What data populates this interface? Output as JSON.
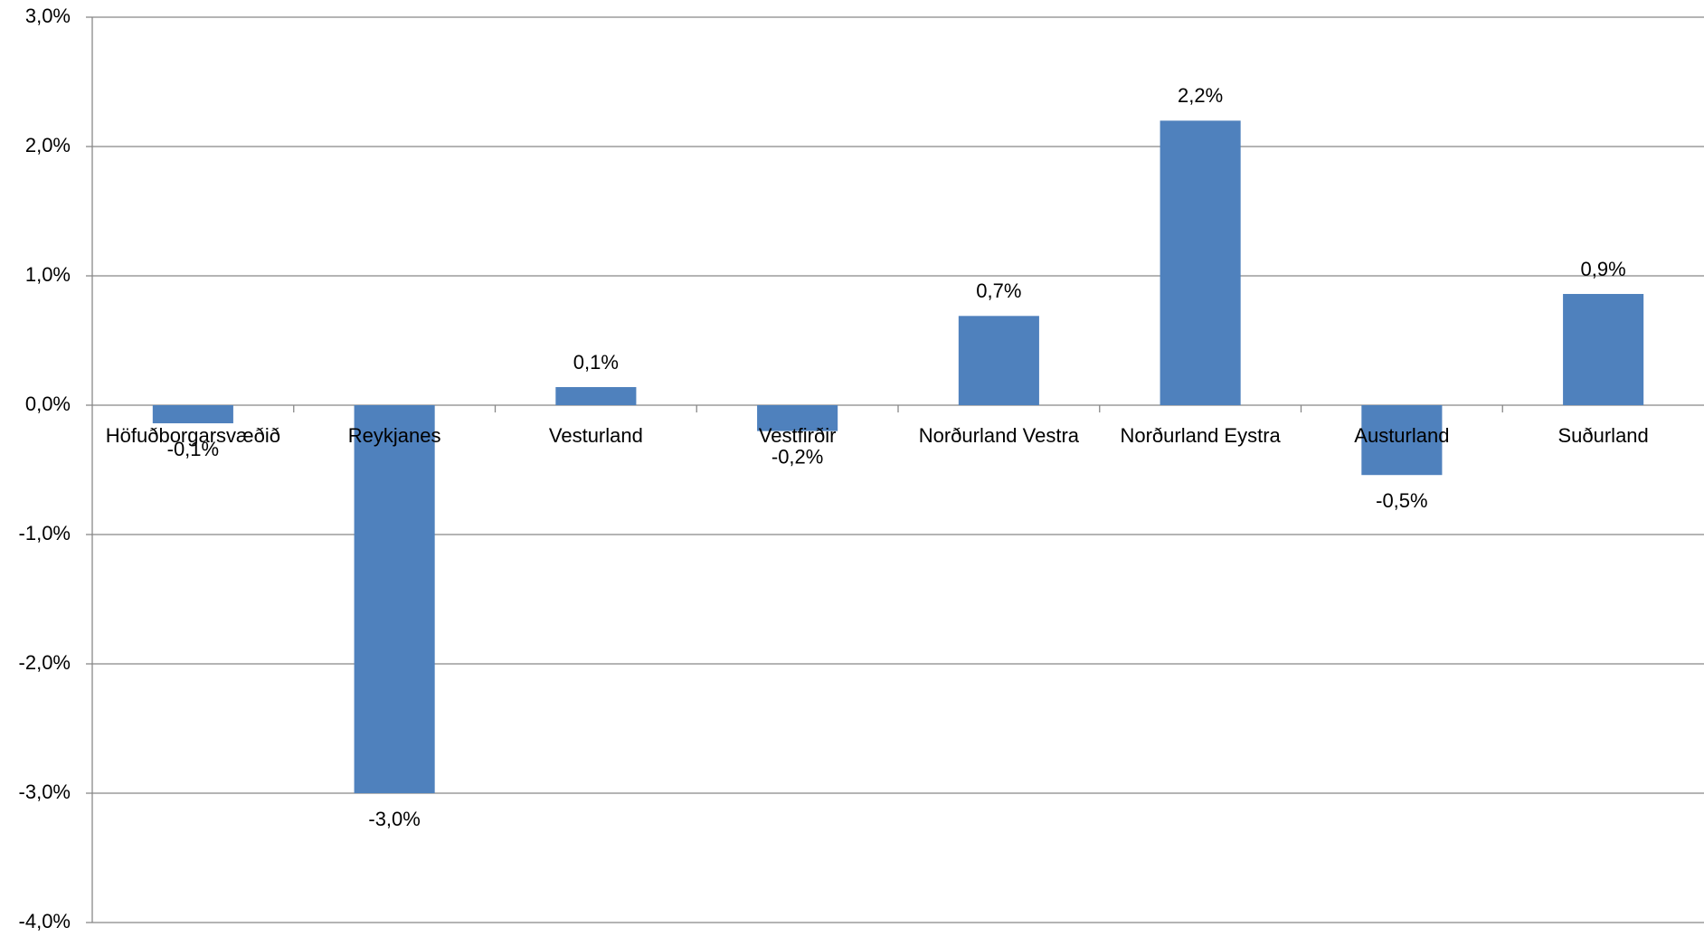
{
  "chart_data": {
    "type": "bar",
    "categories": [
      "Höfuðborgarsvæðið",
      "Reykjanes",
      "Vesturland",
      "Vestfirðir",
      "Norðurland Vestra",
      "Norðurland Eystra",
      "Austurland",
      "Suðurland"
    ],
    "values": [
      -0.14,
      -3.0,
      0.14,
      -0.2,
      0.69,
      2.2,
      -0.54,
      0.86
    ],
    "value_labels": [
      "-0,1%",
      "-3,0%",
      "0,1%",
      "-0,2%",
      "0,7%",
      "2,2%",
      "-0,5%",
      "0,9%"
    ],
    "color": "#4f81bd",
    "ylim": [
      -4,
      3
    ],
    "yticks": [
      {
        "value": -4,
        "label": "-4,0%"
      },
      {
        "value": -3,
        "label": "-3,0%"
      },
      {
        "value": -2,
        "label": "-2,0%"
      },
      {
        "value": -1,
        "label": "-1,0%"
      },
      {
        "value": 0,
        "label": "0,0%"
      },
      {
        "value": 1,
        "label": "1,0%"
      },
      {
        "value": 2,
        "label": "2,0%"
      },
      {
        "value": 3,
        "label": "3,0%"
      }
    ],
    "grid": true
  }
}
